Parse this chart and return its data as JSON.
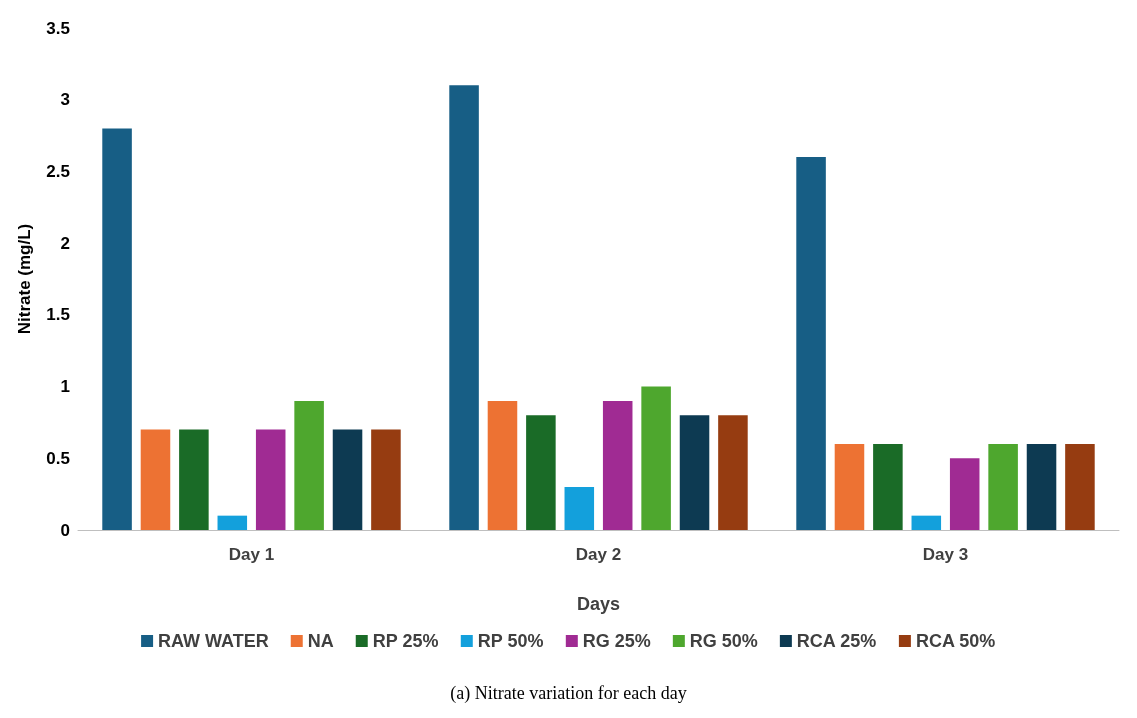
{
  "chart_data": {
    "type": "bar",
    "xlabel": "Days",
    "ylabel": "Nitrate (mg/L)",
    "categories": [
      "Day 1",
      "Day 2",
      "Day 3"
    ],
    "series": [
      {
        "name": "RAW WATER",
        "color": "#175e85",
        "values": [
          2.8,
          3.1,
          2.6
        ]
      },
      {
        "name": "NA",
        "color": "#ed7233",
        "values": [
          0.7,
          0.9,
          0.6
        ]
      },
      {
        "name": "RP 25%",
        "color": "#1a6b27",
        "values": [
          0.7,
          0.8,
          0.6
        ]
      },
      {
        "name": "RP 50%",
        "color": "#13a0dc",
        "values": [
          0.1,
          0.3,
          0.1
        ]
      },
      {
        "name": "RG 25%",
        "color": "#a02b93",
        "values": [
          0.7,
          0.9,
          0.5
        ]
      },
      {
        "name": "RG 50%",
        "color": "#4ea72e",
        "values": [
          0.9,
          1.0,
          0.6
        ]
      },
      {
        "name": "RCA 25%",
        "color": "#0d3a52",
        "values": [
          0.7,
          0.8,
          0.6
        ]
      },
      {
        "name": "RCA 50%",
        "color": "#963c11",
        "values": [
          0.7,
          0.8,
          0.6
        ]
      }
    ],
    "ylim": [
      0,
      3.5
    ],
    "yticks": [
      0,
      0.5,
      1,
      1.5,
      2,
      2.5,
      3,
      3.5
    ],
    "grid": false,
    "legend": "bottom",
    "annotations": [
      "(a) Nitrate variation for each day"
    ]
  }
}
